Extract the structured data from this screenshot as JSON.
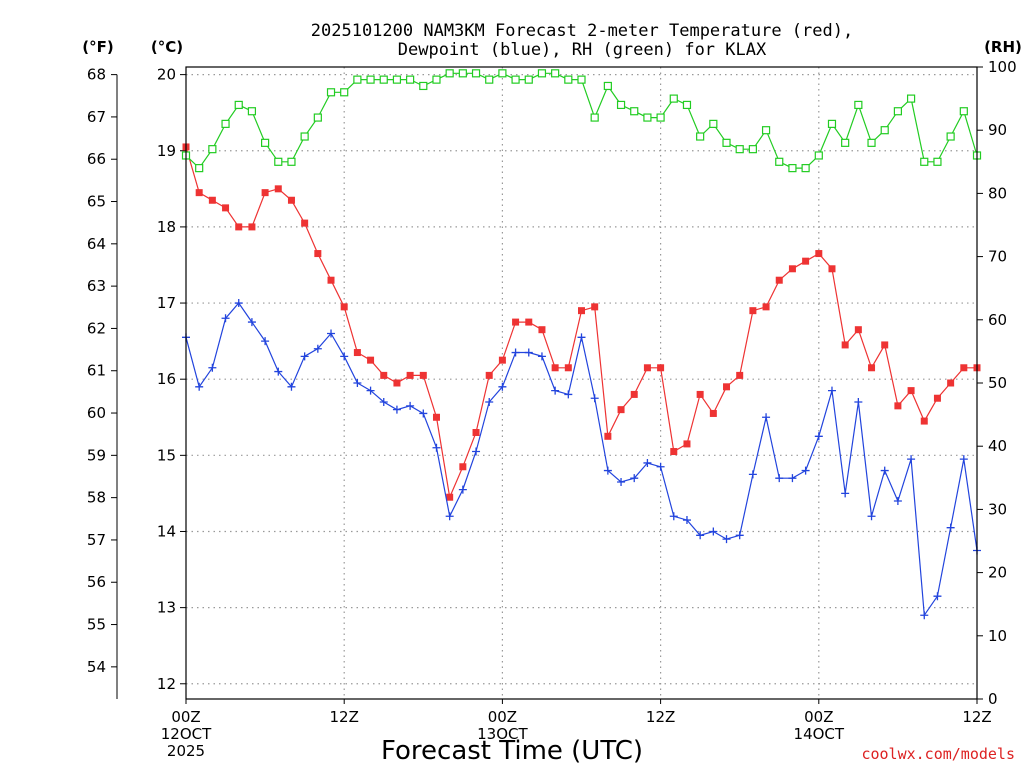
{
  "chart_data": {
    "type": "line",
    "title_line1": "2025101200 NAM3KM Forecast 2-meter Temperature (red),",
    "title_line2": "Dewpoint (blue), RH (green) for KLAX",
    "xlabel": "Forecast Time (UTC)",
    "watermark": "coolwx.com/models",
    "units": {
      "fahrenheit": "(°F)",
      "celsius": "(°C)",
      "rh": "(RH)"
    },
    "x_range_hours": [
      0,
      60
    ],
    "x_ticks": [
      {
        "hour": 0,
        "line1": "00Z",
        "line2": "12OCT",
        "line3": "2025"
      },
      {
        "hour": 12,
        "line1": "12Z",
        "line2": "",
        "line3": ""
      },
      {
        "hour": 24,
        "line1": "00Z",
        "line2": "13OCT",
        "line3": ""
      },
      {
        "hour": 36,
        "line1": "12Z",
        "line2": "",
        "line3": ""
      },
      {
        "hour": 48,
        "line1": "00Z",
        "line2": "14OCT",
        "line3": ""
      },
      {
        "hour": 60,
        "line1": "12Z",
        "line2": "",
        "line3": ""
      }
    ],
    "celsius_axis": {
      "range": [
        11.8,
        20.1
      ],
      "ticks": [
        "12",
        "13",
        "14",
        "15",
        "16",
        "17",
        "18",
        "19",
        "20"
      ]
    },
    "fahrenheit_axis": {
      "ticks": [
        "54",
        "55",
        "56",
        "57",
        "58",
        "59",
        "60",
        "61",
        "62",
        "63",
        "64",
        "65",
        "66",
        "67",
        "68"
      ]
    },
    "rh_axis": {
      "range": [
        0,
        100
      ],
      "ticks": [
        "0",
        "10",
        "20",
        "30",
        "40",
        "50",
        "60",
        "70",
        "80",
        "90",
        "100"
      ]
    },
    "series": [
      {
        "name": "2-meter Temperature",
        "unit": "C",
        "color": "#ee3333",
        "marker": "filled-square",
        "values": [
          19.05,
          18.45,
          18.35,
          18.25,
          18.0,
          18.0,
          18.45,
          18.5,
          18.35,
          18.05,
          17.65,
          17.3,
          16.95,
          16.35,
          16.25,
          16.05,
          15.95,
          16.05,
          16.05,
          15.5,
          14.45,
          14.85,
          15.3,
          16.05,
          16.25,
          16.75,
          16.75,
          16.65,
          16.15,
          16.15,
          16.9,
          16.95,
          15.25,
          15.6,
          15.8,
          16.15,
          16.15,
          15.05,
          15.15,
          15.8,
          15.55,
          15.9,
          16.05,
          16.9,
          16.95,
          17.3,
          17.45,
          17.55,
          17.65,
          17.45,
          16.45,
          16.65,
          16.15,
          16.45,
          15.65,
          15.85,
          15.45,
          15.75,
          15.95,
          16.15,
          16.15
        ]
      },
      {
        "name": "Dewpoint",
        "unit": "C",
        "color": "#2244dd",
        "marker": "plus",
        "values": [
          16.55,
          15.9,
          16.15,
          16.8,
          17.0,
          16.75,
          16.5,
          16.1,
          15.9,
          16.3,
          16.4,
          16.6,
          16.3,
          15.95,
          15.85,
          15.7,
          15.6,
          15.65,
          15.55,
          15.1,
          14.2,
          14.55,
          15.05,
          15.7,
          15.9,
          16.35,
          16.35,
          16.3,
          15.85,
          15.8,
          16.55,
          15.75,
          14.8,
          14.65,
          14.7,
          14.9,
          14.85,
          14.2,
          14.15,
          13.95,
          14.0,
          13.9,
          13.95,
          14.75,
          15.5,
          14.7,
          14.7,
          14.8,
          15.25,
          15.85,
          14.5,
          15.7,
          14.2,
          14.8,
          14.4,
          14.95,
          12.9,
          13.15,
          14.05,
          14.95,
          13.75
        ]
      },
      {
        "name": "RH",
        "unit": "%",
        "color": "#22cc22",
        "marker": "open-square",
        "values": [
          86,
          84,
          87,
          91,
          94,
          93,
          88,
          85,
          85,
          89,
          92,
          96,
          96,
          98,
          98,
          98,
          98,
          98,
          97,
          98,
          99,
          99,
          99,
          98,
          99,
          98,
          98,
          99,
          99,
          98,
          98,
          92,
          97,
          94,
          93,
          92,
          92,
          95,
          94,
          89,
          91,
          88,
          87,
          87,
          90,
          85,
          84,
          84,
          86,
          91,
          88,
          94,
          88,
          90,
          93,
          95,
          85,
          85,
          89,
          93,
          86
        ]
      }
    ]
  }
}
